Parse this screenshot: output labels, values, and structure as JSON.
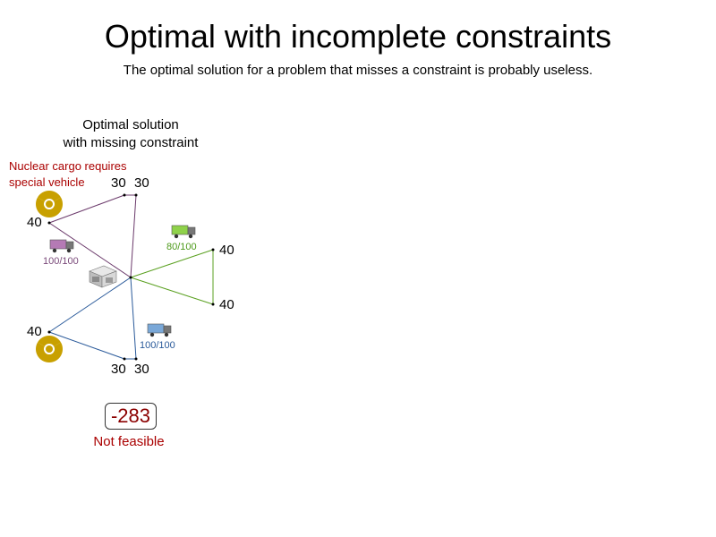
{
  "title": "Optimal with incomplete constraints",
  "subtitle": "The optimal solution for a problem that misses a constraint is probably useless.",
  "panel": {
    "title_line1": "Optimal solution",
    "title_line2": "with missing constraint",
    "warning_line1": "Nuclear cargo requires",
    "warning_line2": "special vehicle",
    "nodes": [
      {
        "id": "n1",
        "demand": "40"
      },
      {
        "id": "n2",
        "demand": "30"
      },
      {
        "id": "n3",
        "demand": "30"
      },
      {
        "id": "n4",
        "demand": "40"
      },
      {
        "id": "n5",
        "demand": "40"
      },
      {
        "id": "n6",
        "demand": "40"
      },
      {
        "id": "n7",
        "demand": "30"
      },
      {
        "id": "n8",
        "demand": "30"
      }
    ],
    "vehicles": [
      {
        "name": "purple-truck",
        "load": "100/100",
        "color": "#7a4a7a"
      },
      {
        "name": "green-truck",
        "load": "80/100",
        "color": "#4d9a1a"
      },
      {
        "name": "blue-truck",
        "load": "100/100",
        "color": "#2a5a9a"
      }
    ],
    "score": "-283",
    "status": "Not feasible",
    "colors": {
      "route_purple": "#6b3a6b",
      "route_green": "#5aa020",
      "route_blue": "#2a5a9a",
      "nuclear": "#c8a000",
      "error": "#aa0000"
    },
    "icons": [
      "radiation-icon",
      "truck-icon",
      "depot-icon"
    ]
  }
}
